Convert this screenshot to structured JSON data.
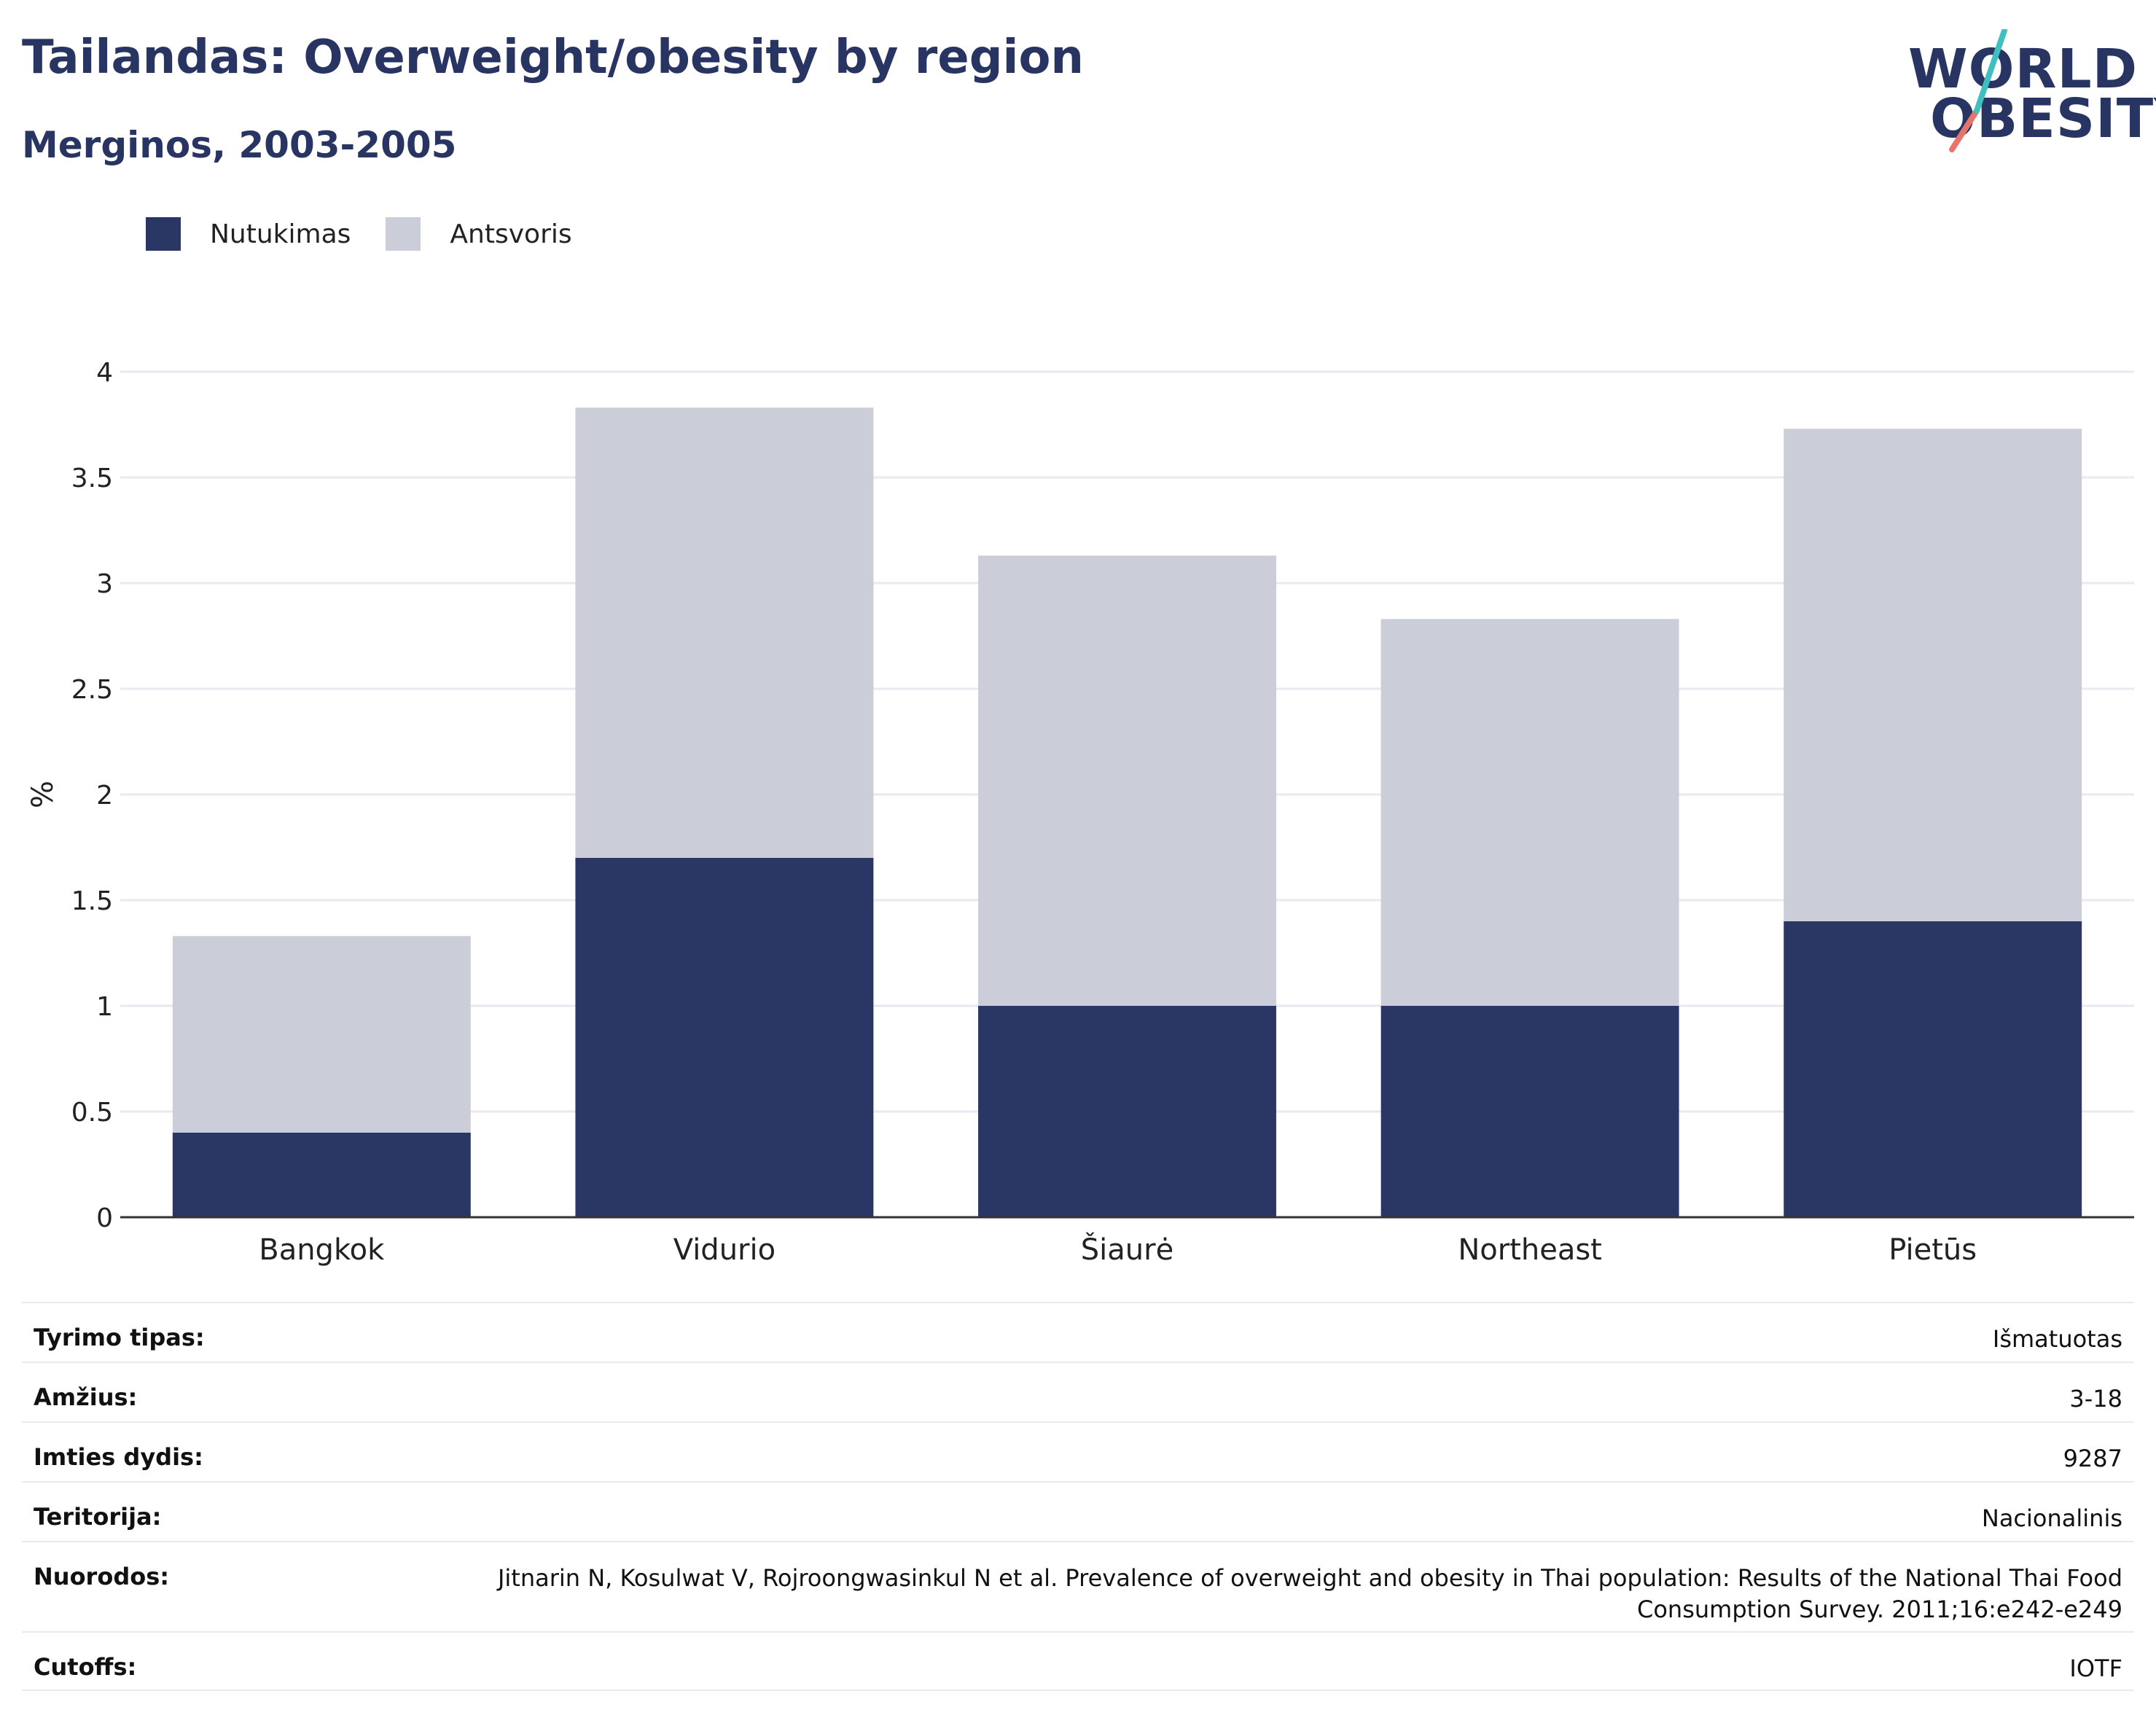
{
  "header": {
    "title": "Tailandas: Overweight/obesity by region",
    "subtitle": "Merginos, 2003-2005"
  },
  "logo": {
    "line1": "WORLD",
    "line2": "OBESITY"
  },
  "legend": [
    {
      "label": "Nutukimas",
      "color": "#2a3764"
    },
    {
      "label": "Antsvoris",
      "color": "#cbcdd8"
    }
  ],
  "chart_data": {
    "type": "bar",
    "stacked": true,
    "ylabel": "%",
    "ylim": [
      0,
      4
    ],
    "yticks": [
      "0",
      "0.5",
      "1",
      "1.5",
      "2",
      "2.5",
      "3",
      "3.5",
      "4"
    ],
    "grid": true,
    "legend_position": "top-left",
    "categories": [
      "Bangkok",
      "Vidurio",
      "Šiaurė",
      "Northeast",
      "Pietūs"
    ],
    "series": [
      {
        "name": "Nutukimas",
        "color": "#2a3764",
        "values": [
          0.4,
          1.7,
          1.0,
          1.0,
          1.4
        ]
      },
      {
        "name": "Antsvoris",
        "color": "#cbcdd8",
        "values": [
          0.93,
          2.13,
          2.13,
          1.83,
          2.33
        ]
      }
    ]
  },
  "info": {
    "rows": [
      {
        "label": "Tyrimo tipas:",
        "value": "Išmatuotas"
      },
      {
        "label": "Amžius:",
        "value": "3-18"
      },
      {
        "label": "Imties dydis:",
        "value": "9287"
      },
      {
        "label": "Teritorija:",
        "value": "Nacionalinis"
      },
      {
        "label": "Nuorodos:",
        "value": "Jitnarin N, Kosulwat V, Rojroongwasinkul N et al. Prevalence of overweight and obesity in Thai population: Results of the National Thai Food Consumption Survey. 2011;16:e242-e249"
      },
      {
        "label": "Cutoffs:",
        "value": "IOTF"
      }
    ]
  }
}
